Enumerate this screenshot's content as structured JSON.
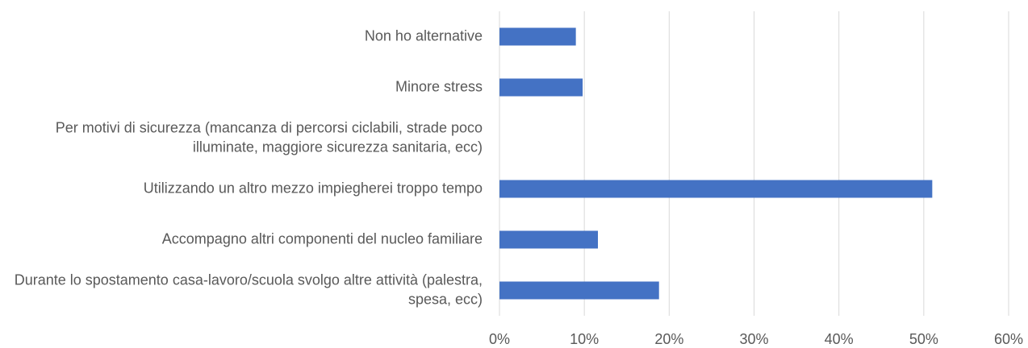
{
  "chart_data": {
    "type": "bar",
    "orientation": "horizontal",
    "categories": [
      "Non ho alternative",
      "Minore stress",
      "Per motivi di sicurezza (mancanza di percorsi ciclabili, strade poco illuminate, maggiore sicurezza sanitaria, ecc)",
      "Utilizzando un altro mezzo impiegherei troppo tempo",
      "Accompagno altri componenti del nucleo familiare",
      "Durante lo spostamento casa-lavoro/scuola svolgo altre attività (palestra, spesa, ecc)"
    ],
    "values": [
      9,
      9.8,
      0,
      51,
      11.6,
      18.8
    ],
    "color": "#4472c4",
    "xlim": [
      0,
      60
    ],
    "xticks": [
      {
        "value": 0,
        "label": "0%"
      },
      {
        "value": 10,
        "label": "10%"
      },
      {
        "value": 20,
        "label": "20%"
      },
      {
        "value": 30,
        "label": "30%"
      },
      {
        "value": 40,
        "label": "40%"
      },
      {
        "value": 50,
        "label": "50%"
      },
      {
        "value": 60,
        "label": "60%"
      }
    ],
    "grid": true
  }
}
